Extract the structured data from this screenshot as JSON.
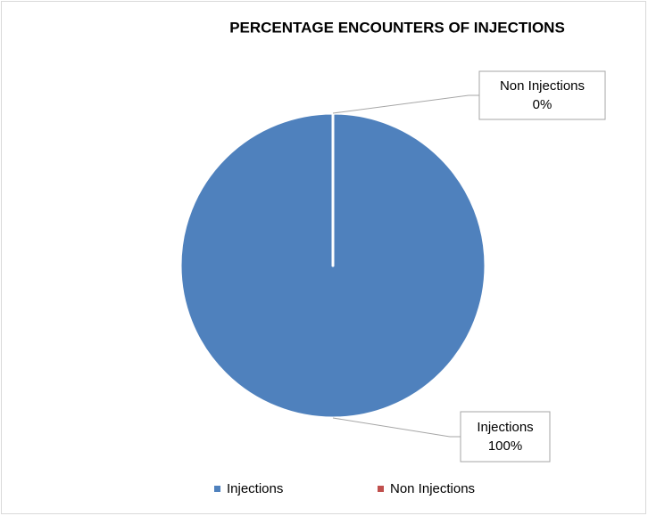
{
  "chart_data": {
    "type": "pie",
    "title": "PERCENTAGE ENCOUNTERS OF INJECTIONS",
    "categories": [
      "Injections",
      "Non Injections"
    ],
    "values": [
      100,
      0
    ],
    "value_labels": [
      "100%",
      "0%"
    ],
    "colors": [
      "#4f81bd",
      "#c0504d"
    ],
    "legend": "bottom"
  }
}
